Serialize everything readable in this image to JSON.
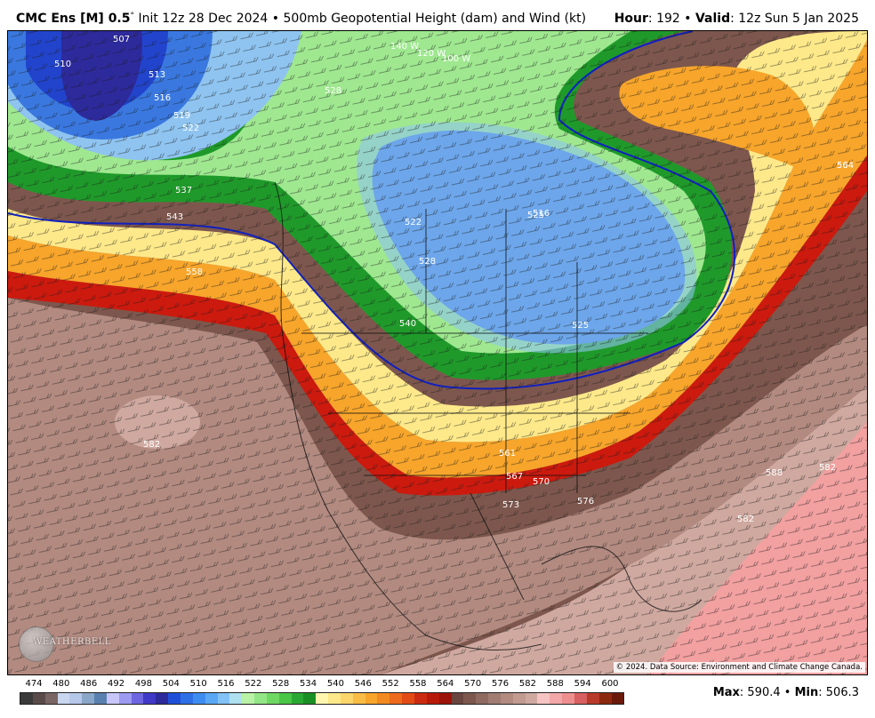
{
  "header": {
    "model": "CMC Ens [M] 0.5",
    "degree_mark": "°",
    "init": "Init 12z 28 Dec 2024",
    "bullet": "•",
    "product": "500mb Geopotential Height (dam) and Wind (kt)",
    "hour_label": "Hour",
    "hour_value": ": 192",
    "valid_label": "Valid",
    "valid_value": ": 12z Sun 5 Jan 2025"
  },
  "map": {
    "credit": "© 2024. Data Source: Environment and Climate Change Canada.",
    "logo_text": "WEATHERBELL",
    "contour_labels": [
      "507",
      "510",
      "513",
      "516",
      "519",
      "522",
      "528",
      "537",
      "543",
      "558",
      "564",
      "582",
      "525",
      "528",
      "522",
      "540",
      "516",
      "525",
      "561",
      "567",
      "570",
      "573",
      "576",
      "582",
      "588",
      "582",
      "140 W",
      "120 W",
      "100 W",
      "564"
    ],
    "colors": {
      "low_core": "#2d2a9c",
      "deep_blue": "#2244cc",
      "mid_blue": "#3a78e0",
      "light_blue": "#8fc4f0",
      "light_green": "#9fe890",
      "mid_green": "#4ec84a",
      "dark_green": "#1f9a2a",
      "yellow": "#fde98a",
      "orange": "#f7a52b",
      "red_orange": "#ee5a1c",
      "red": "#cc1a0e",
      "brown": "#7d574d",
      "tan_brown": "#b28a80",
      "light_tan": "#cfa9a0",
      "pink": "#f2a0a0",
      "ridge_560_line": "#1020c0"
    }
  },
  "colorbar": {
    "labels": [
      "474",
      "480",
      "486",
      "492",
      "498",
      "504",
      "510",
      "516",
      "522",
      "528",
      "534",
      "540",
      "546",
      "552",
      "558",
      "564",
      "570",
      "576",
      "582",
      "588",
      "594",
      "600"
    ],
    "colors": [
      "#3a3a3a",
      "#5a4a4a",
      "#7a6565",
      "#c9d6ef",
      "#b6c8ea",
      "#8aa6c8",
      "#5a80b0",
      "#c8c6f8",
      "#9d9af2",
      "#6d66e0",
      "#4038c6",
      "#2d2a9c",
      "#1f4fd8",
      "#2f6fe6",
      "#3f8cf0",
      "#5aa7f4",
      "#82c2f6",
      "#aee0f0",
      "#b9f2a6",
      "#93e685",
      "#6fd863",
      "#49c646",
      "#2aa834",
      "#1a8f24",
      "#fff7b0",
      "#fde98a",
      "#fcd66a",
      "#f9bd45",
      "#f7a52b",
      "#f38a21",
      "#ee6a1c",
      "#e24b15",
      "#cc2a10",
      "#b81a0a",
      "#9c130a",
      "#6a4640",
      "#7d574d",
      "#8e6a60",
      "#a07c72",
      "#b28a80",
      "#c19a90",
      "#cfa9a0",
      "#f7c4c4",
      "#f2a8a8",
      "#ee8f8f",
      "#d86060",
      "#b83a2a",
      "#8c2a10",
      "#6a1a0a"
    ]
  },
  "stats": {
    "max_label": "Max",
    "max_value": ": 590.4",
    "bullet": "•",
    "min_label": "Min",
    "min_value": ": 506.3"
  }
}
